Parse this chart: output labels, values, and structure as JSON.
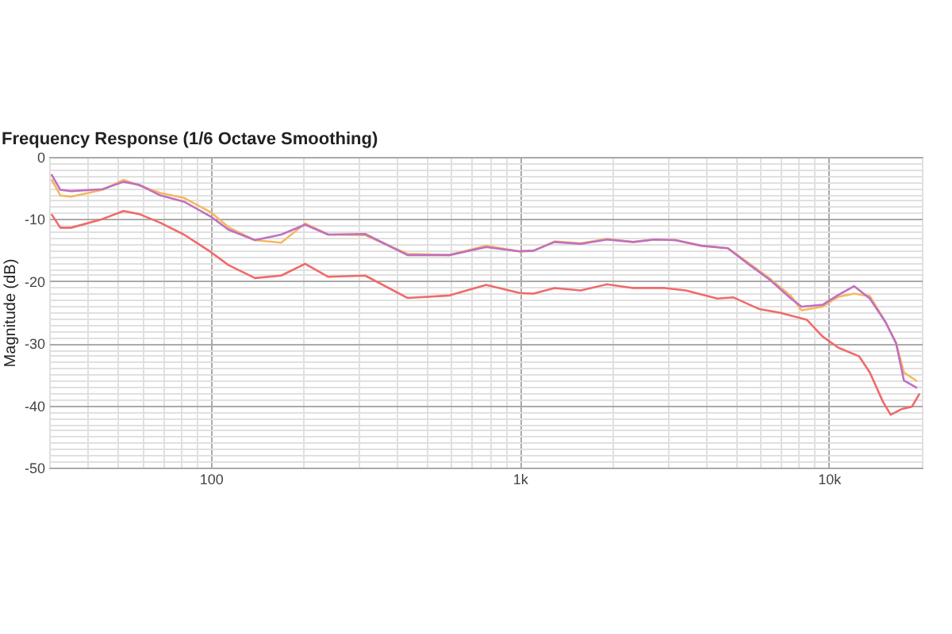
{
  "chart_data": {
    "type": "line",
    "title": "Frequency Response (1/6 Octave Smoothing)",
    "ylabel": "Magnitude (dB)",
    "log": "x",
    "grid": true,
    "legend": false,
    "marker": "none",
    "line_style": "solid",
    "xlim": [
      30,
      20000
    ],
    "ylim": [
      -50,
      0
    ],
    "xticks": [
      {
        "value": 30,
        "label": null
      },
      {
        "value": 40,
        "label": null
      },
      {
        "value": 50,
        "label": null
      },
      {
        "value": 60,
        "label": null
      },
      {
        "value": 70,
        "label": null
      },
      {
        "value": 80,
        "label": null
      },
      {
        "value": 90,
        "label": null
      },
      100,
      {
        "value": 200,
        "label": null
      },
      {
        "value": 300,
        "label": null
      },
      {
        "value": 400,
        "label": null
      },
      {
        "value": 500,
        "label": null
      },
      {
        "value": 600,
        "label": null
      },
      {
        "value": 700,
        "label": null
      },
      {
        "value": 800,
        "label": null
      },
      {
        "value": 900,
        "label": null
      },
      {
        "value": 1000,
        "label": "1k"
      },
      {
        "value": 2000,
        "label": null
      },
      {
        "value": 3000,
        "label": null
      },
      {
        "value": 4000,
        "label": null
      },
      {
        "value": 5000,
        "label": null
      },
      {
        "value": 6000,
        "label": null
      },
      {
        "value": 7000,
        "label": null
      },
      {
        "value": 8000,
        "label": null
      },
      {
        "value": 9000,
        "label": null
      },
      {
        "value": 10000,
        "label": "10k"
      },
      {
        "value": 20000,
        "label": null
      }
    ],
    "yticks": [
      -50,
      {
        "value": -49,
        "label": null
      },
      {
        "value": -48,
        "label": null
      },
      {
        "value": -47,
        "label": null
      },
      {
        "value": -46,
        "label": null
      },
      {
        "value": -45,
        "label": null
      },
      {
        "value": -44,
        "label": null
      },
      {
        "value": -43,
        "label": null
      },
      {
        "value": -42,
        "label": null
      },
      {
        "value": -41,
        "label": null
      },
      -40,
      {
        "value": -39,
        "label": null
      },
      {
        "value": -38,
        "label": null
      },
      {
        "value": -37,
        "label": null
      },
      {
        "value": -36,
        "label": null
      },
      {
        "value": -35,
        "label": null
      },
      {
        "value": -34,
        "label": null
      },
      {
        "value": -33,
        "label": null
      },
      {
        "value": -32,
        "label": null
      },
      {
        "value": -31,
        "label": null
      },
      -30,
      {
        "value": -29,
        "label": null
      },
      {
        "value": -28,
        "label": null
      },
      {
        "value": -27,
        "label": null
      },
      {
        "value": -26,
        "label": null
      },
      {
        "value": -25,
        "label": null
      },
      {
        "value": -24,
        "label": null
      },
      {
        "value": -23,
        "label": null
      },
      {
        "value": -22,
        "label": null
      },
      {
        "value": -21,
        "label": null
      },
      -20,
      {
        "value": -19,
        "label": null
      },
      {
        "value": -18,
        "label": null
      },
      {
        "value": -17,
        "label": null
      },
      {
        "value": -16,
        "label": null
      },
      {
        "value": -15,
        "label": null
      },
      {
        "value": -14,
        "label": null
      },
      {
        "value": -13,
        "label": null
      },
      {
        "value": -12,
        "label": null
      },
      {
        "value": -11,
        "label": null
      },
      -10,
      {
        "value": -9,
        "label": null
      },
      {
        "value": -8,
        "label": null
      },
      {
        "value": -7,
        "label": null
      },
      {
        "value": -6,
        "label": null
      },
      {
        "value": -5,
        "label": null
      },
      {
        "value": -4,
        "label": null
      },
      {
        "value": -3,
        "label": null
      },
      {
        "value": -2,
        "label": null
      },
      {
        "value": -1,
        "label": null
      },
      0
    ],
    "series": [
      {
        "color": "#f5b860",
        "x": [
          30.5,
          32.6,
          35.3,
          44.6,
          52.2,
          68.7,
          81.9,
          100,
          114,
          139,
          169,
          202,
          240,
          316,
          433,
          592,
          778,
          1000,
          1107,
          1295,
          1575,
          1915,
          2329,
          2725,
          3187,
          3875,
          4713,
          5513,
          6451,
          7545,
          8163,
          9545,
          10737,
          12070,
          13576,
          15262,
          16509,
          17503,
          19309
        ],
        "values": [
          -3.6,
          -6.2,
          -6.4,
          -5.3,
          -3.7,
          -5.8,
          -6.6,
          -8.9,
          -11.3,
          -13.4,
          -13.8,
          -10.7,
          -12.5,
          -12.6,
          -15.6,
          -15.8,
          -14.3,
          -15.2,
          -15.1,
          -13.6,
          -13.9,
          -13.2,
          -13.7,
          -13.3,
          -13.4,
          -14.3,
          -14.7,
          -17.1,
          -19.6,
          -22.4,
          -24.7,
          -24.1,
          -22.5,
          -22.0,
          -22.4,
          -26.6,
          -30.0,
          -34.7,
          -36.1
        ]
      },
      {
        "color": "#c070c0",
        "x": [
          30.5,
          32.6,
          35.3,
          44.6,
          52.2,
          58.7,
          68.7,
          81.9,
          100,
          114,
          139,
          169,
          202,
          240,
          316,
          433,
          592,
          778,
          1000,
          1107,
          1295,
          1575,
          1915,
          2329,
          2725,
          3187,
          3875,
          4713,
          5513,
          6451,
          7545,
          8163,
          9545,
          10737,
          12070,
          13576,
          15262,
          16509,
          17503,
          19309
        ],
        "values": [
          -2.8,
          -5.3,
          -5.5,
          -5.2,
          -4.0,
          -4.5,
          -6.2,
          -7.2,
          -9.6,
          -11.7,
          -13.4,
          -12.5,
          -10.9,
          -12.5,
          -12.4,
          -15.8,
          -15.8,
          -14.5,
          -15.2,
          -15.1,
          -13.7,
          -14.0,
          -13.3,
          -13.7,
          -13.3,
          -13.4,
          -14.3,
          -14.7,
          -17.3,
          -19.8,
          -22.8,
          -24.1,
          -23.8,
          -22.2,
          -20.8,
          -22.8,
          -26.6,
          -30.0,
          -36.0,
          -37.2
        ]
      },
      {
        "color": "#f06a6a",
        "x": [
          30.5,
          32.6,
          35.3,
          44.6,
          52.2,
          58.7,
          68.7,
          81.9,
          100,
          114,
          139,
          169,
          202,
          240,
          316,
          433,
          592,
          778,
          1000,
          1107,
          1295,
          1575,
          1915,
          2329,
          2946,
          3447,
          4359,
          4902,
          5964,
          6973,
          8486,
          9545,
          10737,
          12537,
          13576,
          14962,
          15855,
          17162,
          18570,
          19666
        ],
        "values": [
          -9.2,
          -11.4,
          -11.4,
          -10.0,
          -8.7,
          -9.2,
          -10.6,
          -12.5,
          -15.3,
          -17.4,
          -19.5,
          -19.1,
          -17.2,
          -19.3,
          -19.1,
          -22.7,
          -22.3,
          -20.6,
          -21.9,
          -22.0,
          -21.1,
          -21.5,
          -20.5,
          -21.1,
          -21.1,
          -21.5,
          -22.8,
          -22.6,
          -24.5,
          -25.1,
          -26.2,
          -28.9,
          -30.7,
          -32.1,
          -34.7,
          -39.4,
          -41.5,
          -40.6,
          -40.2,
          -38.1
        ]
      }
    ]
  }
}
